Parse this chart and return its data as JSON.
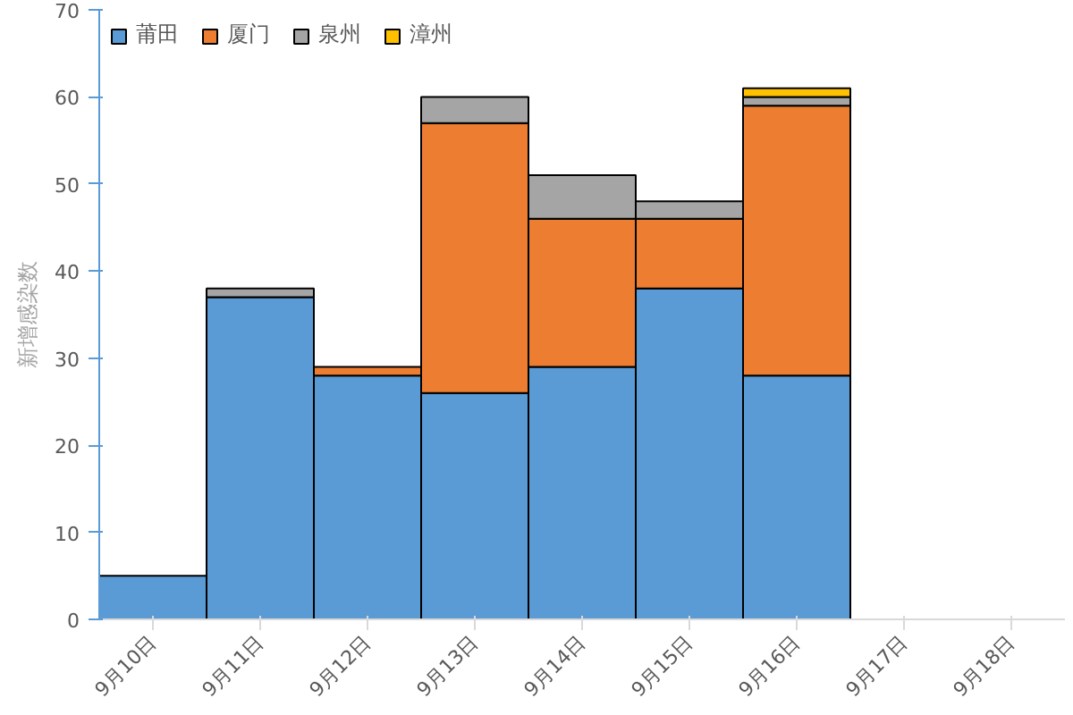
{
  "chart_data": {
    "type": "bar",
    "stacked": true,
    "ylabel": "新增感染数",
    "categories": [
      "9月10日",
      "9月11日",
      "9月12日",
      "9月13日",
      "9月14日",
      "9月15日",
      "9月16日",
      "9月17日",
      "9月18日"
    ],
    "series": [
      {
        "name": "莆田",
        "color": "#5b9bd5",
        "values": [
          5,
          37,
          28,
          26,
          29,
          38,
          28,
          null,
          null
        ]
      },
      {
        "name": "厦门",
        "color": "#ed7d31",
        "values": [
          0,
          0,
          1,
          31,
          17,
          8,
          31,
          null,
          null
        ]
      },
      {
        "name": "泉州",
        "color": "#a5a5a5",
        "values": [
          0,
          1,
          0,
          3,
          5,
          2,
          1,
          null,
          null
        ]
      },
      {
        "name": "漳州",
        "color": "#ffc000",
        "values": [
          0,
          0,
          0,
          0,
          0,
          0,
          1,
          null,
          null
        ]
      }
    ],
    "ylim": [
      0,
      70
    ],
    "yticks": [
      0,
      10,
      20,
      30,
      40,
      50,
      60,
      70
    ],
    "grid": false,
    "legend": "top left"
  }
}
